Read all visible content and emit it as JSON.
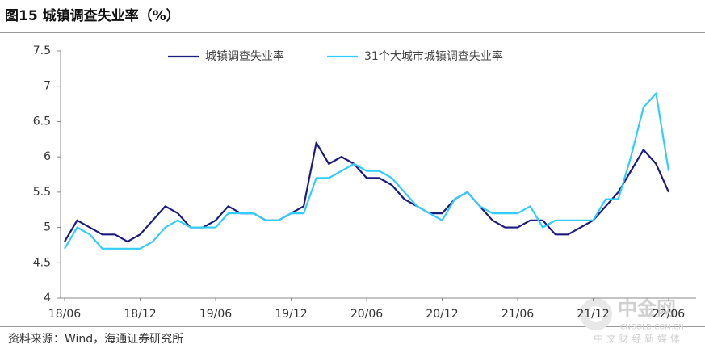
{
  "chart_data": {
    "type": "line",
    "title": "图15 城镇调查失业率（%）",
    "source": "资料来源：Wind，海通证券研究所",
    "watermark": [
      "中金网",
      "CNGOLD.COM.CN",
      "中 文 财 经 新 媒 体"
    ],
    "categories": [
      "18/06",
      null,
      null,
      null,
      null,
      null,
      "18/12",
      null,
      null,
      null,
      null,
      null,
      "19/06",
      null,
      null,
      null,
      null,
      null,
      "19/12",
      null,
      null,
      null,
      null,
      null,
      "20/06",
      null,
      null,
      null,
      null,
      null,
      "20/12",
      null,
      null,
      null,
      null,
      null,
      "21/06",
      null,
      null,
      null,
      null,
      null,
      "21/12",
      null,
      null,
      null,
      null,
      null,
      "22/06"
    ],
    "series": [
      {
        "name": "城镇调查失业率",
        "color": "#1b1b80",
        "values": [
          4.8,
          5.1,
          5.0,
          4.9,
          4.9,
          4.8,
          4.9,
          5.1,
          5.3,
          5.2,
          5.0,
          5.0,
          5.1,
          5.3,
          5.2,
          5.2,
          5.1,
          5.1,
          5.2,
          5.3,
          6.2,
          5.9,
          6.0,
          5.9,
          5.7,
          5.7,
          5.6,
          5.4,
          5.3,
          5.2,
          5.2,
          5.4,
          5.5,
          5.3,
          5.1,
          5.0,
          5.0,
          5.1,
          5.1,
          4.9,
          4.9,
          5.0,
          5.1,
          5.3,
          5.5,
          5.8,
          6.1,
          5.9,
          5.5
        ]
      },
      {
        "name": "31个大城市城镇调查失业率",
        "color": "#33ccff",
        "values": [
          4.7,
          5.0,
          4.9,
          4.7,
          4.7,
          4.7,
          4.7,
          4.8,
          5.0,
          5.1,
          5.0,
          5.0,
          5.0,
          5.2,
          5.2,
          5.2,
          5.1,
          5.1,
          5.2,
          5.2,
          5.7,
          5.7,
          5.8,
          5.9,
          5.8,
          5.8,
          5.7,
          5.5,
          5.3,
          5.2,
          5.1,
          5.4,
          5.5,
          5.3,
          5.2,
          5.2,
          5.2,
          5.3,
          5.0,
          5.1,
          5.1,
          5.1,
          5.1,
          5.4,
          5.4,
          6.0,
          6.7,
          6.9,
          5.8
        ]
      }
    ],
    "ylim": [
      4,
      7.5
    ],
    "yticks": [
      4,
      4.5,
      5,
      5.5,
      6,
      6.5,
      7,
      7.5
    ],
    "grid": false,
    "legend": "top"
  }
}
